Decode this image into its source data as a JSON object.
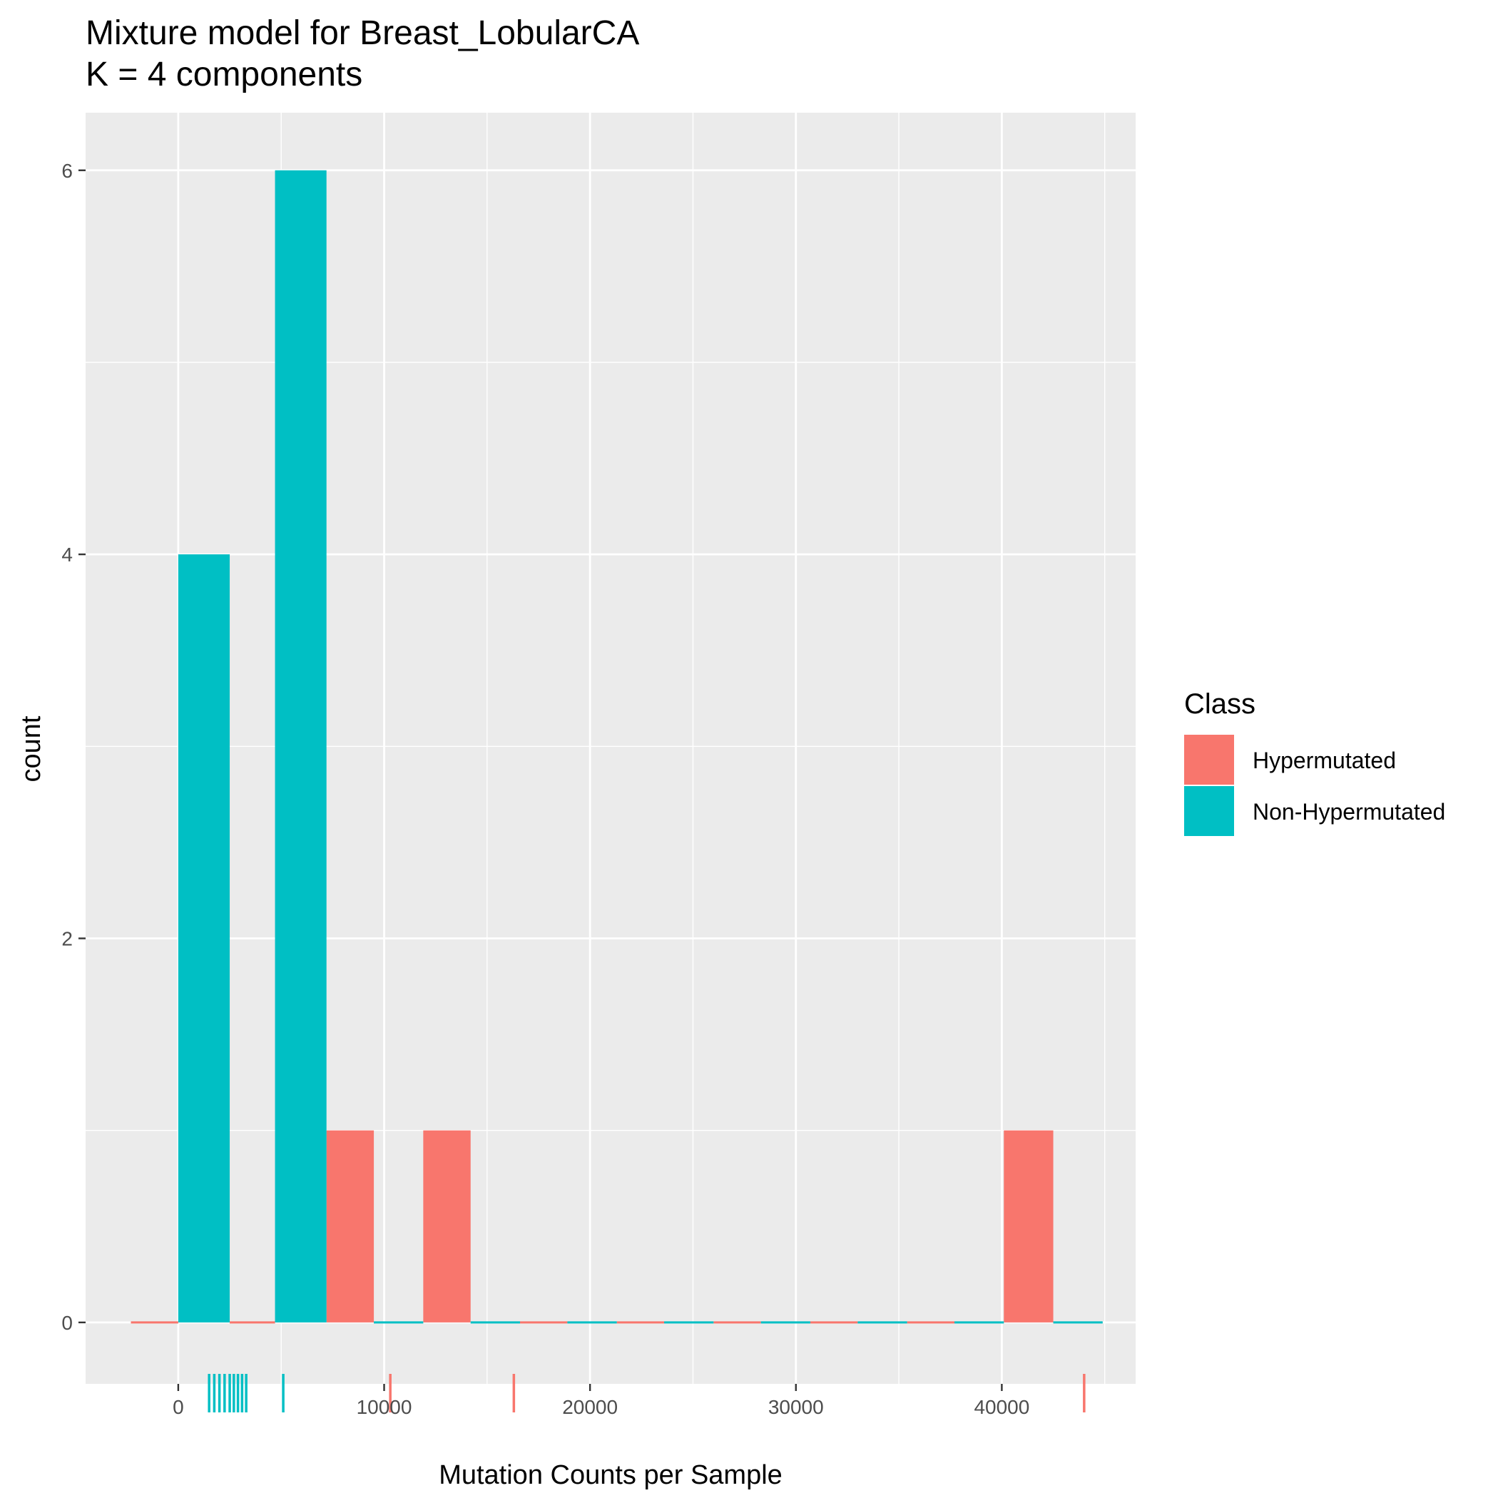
{
  "chart_data": {
    "type": "bar",
    "title": "Mixture model for Breast_LobularCA",
    "subtitle": "K = 4 components",
    "xlabel": "Mutation Counts per Sample",
    "ylabel": "count",
    "xlim": [
      -4500,
      46500
    ],
    "ylim": [
      -0.32,
      6.3
    ],
    "x_ticks": [
      0,
      10000,
      20000,
      30000,
      40000
    ],
    "x_tick_labels": [
      "0",
      "10000",
      "20000",
      "30000",
      "40000"
    ],
    "y_ticks": [
      0,
      2,
      4,
      6
    ],
    "y_tick_labels": [
      "0",
      "2",
      "4",
      "6"
    ],
    "grid": true,
    "legend": {
      "title": "Class",
      "position": "right",
      "entries": [
        "Hypermutated",
        "Non-Hypermutated"
      ]
    },
    "series": [
      {
        "name": "Hypermutated",
        "color": "#F8766D",
        "bins": [
          {
            "x0": -2300,
            "x1": 0,
            "count": 0
          },
          {
            "x0": 2500,
            "x1": 4700,
            "count": 0
          },
          {
            "x0": 7200,
            "x1": 9500,
            "count": 1
          },
          {
            "x0": 11900,
            "x1": 14200,
            "count": 1
          },
          {
            "x0": 16600,
            "x1": 18900,
            "count": 0
          },
          {
            "x0": 21300,
            "x1": 23600,
            "count": 0
          },
          {
            "x0": 26000,
            "x1": 28300,
            "count": 0
          },
          {
            "x0": 30700,
            "x1": 33000,
            "count": 0
          },
          {
            "x0": 35400,
            "x1": 37700,
            "count": 0
          },
          {
            "x0": 40100,
            "x1": 42500,
            "count": 1
          }
        ],
        "rug": [
          10300,
          16300,
          44000
        ]
      },
      {
        "name": "Non-Hypermutated",
        "color": "#00BFC4",
        "bins": [
          {
            "x0": 0,
            "x1": 2500,
            "count": 4
          },
          {
            "x0": 4700,
            "x1": 7200,
            "count": 6
          },
          {
            "x0": 9500,
            "x1": 11900,
            "count": 0
          },
          {
            "x0": 14200,
            "x1": 16600,
            "count": 0
          },
          {
            "x0": 18900,
            "x1": 21300,
            "count": 0
          },
          {
            "x0": 23600,
            "x1": 26000,
            "count": 0
          },
          {
            "x0": 28300,
            "x1": 30700,
            "count": 0
          },
          {
            "x0": 33000,
            "x1": 35400,
            "count": 0
          },
          {
            "x0": 37700,
            "x1": 40100,
            "count": 0
          },
          {
            "x0": 42500,
            "x1": 44900,
            "count": 0
          }
        ],
        "rug": [
          1500,
          1750,
          2000,
          2250,
          2500,
          2700,
          2900,
          3100,
          3300,
          5100
        ]
      }
    ]
  }
}
